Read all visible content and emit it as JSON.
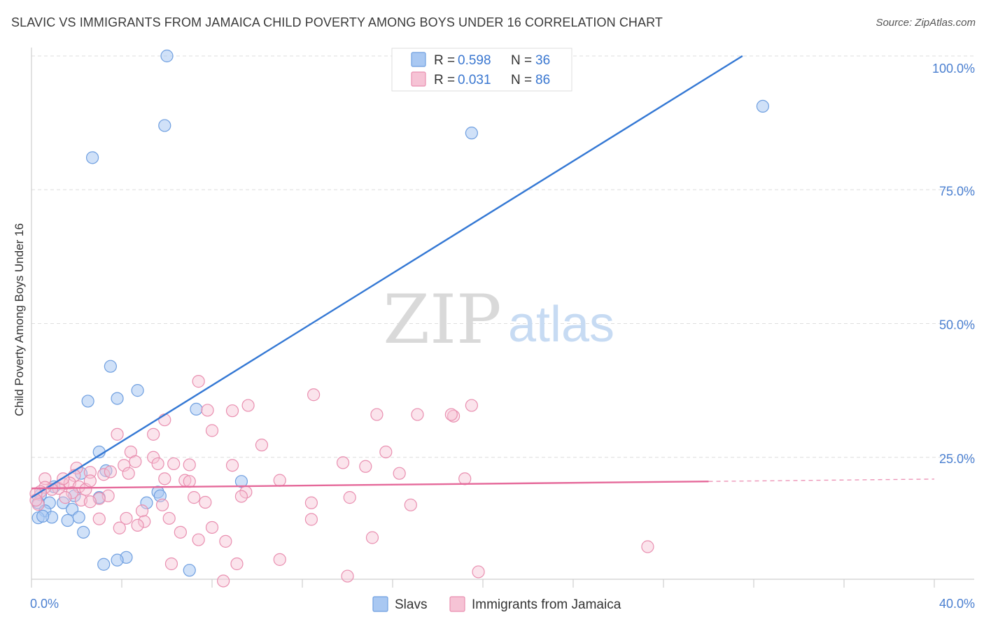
{
  "title": "SLAVIC VS IMMIGRANTS FROM JAMAICA CHILD POVERTY AMONG BOYS UNDER 16 CORRELATION CHART",
  "source": "Source: ZipAtlas.com",
  "watermark": {
    "zip": "ZIP",
    "atlas": "atlas"
  },
  "chart_data": {
    "type": "scatter",
    "xlabel": "",
    "ylabel": "Child Poverty Among Boys Under 16",
    "xlim": [
      0,
      40
    ],
    "ylim": [
      0,
      100
    ],
    "x_tick_labels": [
      "0.0%",
      "40.0%"
    ],
    "y_tick_labels": [
      "25.0%",
      "50.0%",
      "75.0%",
      "100.0%"
    ],
    "y_ticks": [
      25,
      50,
      75,
      100
    ],
    "grid": true,
    "legend_position": "top-center",
    "series": [
      {
        "name": "Slavs",
        "color": "#6f9fe0",
        "fill": "#a9c8f2",
        "line_color": "#3478d4",
        "R": "0.598",
        "N": "36",
        "trend": {
          "x0": 0,
          "y0": 17.5,
          "x1": 31.5,
          "y1": 100,
          "dashed_to": null
        },
        "points": [
          [
            6.0,
            100.0
          ],
          [
            5.9,
            87.0
          ],
          [
            2.7,
            81.0
          ],
          [
            32.4,
            90.6
          ],
          [
            19.5,
            85.6
          ],
          [
            3.5,
            42.0
          ],
          [
            4.7,
            37.5
          ],
          [
            3.8,
            36.0
          ],
          [
            2.5,
            35.5
          ],
          [
            7.3,
            34.0
          ],
          [
            3.0,
            26.0
          ],
          [
            3.3,
            22.5
          ],
          [
            2.2,
            22.0
          ],
          [
            9.3,
            20.5
          ],
          [
            1.0,
            19.5
          ],
          [
            0.4,
            18.0
          ],
          [
            1.9,
            17.8
          ],
          [
            5.6,
            18.5
          ],
          [
            5.7,
            17.8
          ],
          [
            3.0,
            17.5
          ],
          [
            0.8,
            16.5
          ],
          [
            1.4,
            16.5
          ],
          [
            5.1,
            16.5
          ],
          [
            0.3,
            16.5
          ],
          [
            1.8,
            15.3
          ],
          [
            0.6,
            15.0
          ],
          [
            0.9,
            13.8
          ],
          [
            0.3,
            13.7
          ],
          [
            2.1,
            13.8
          ],
          [
            1.6,
            13.2
          ],
          [
            0.5,
            14.0
          ],
          [
            2.3,
            11.0
          ],
          [
            4.2,
            6.3
          ],
          [
            3.8,
            5.8
          ],
          [
            3.2,
            5.0
          ],
          [
            7.0,
            3.9
          ]
        ]
      },
      {
        "name": "Immigrants from Jamaica",
        "color": "#e98fb0",
        "fill": "#f6c3d5",
        "line_color": "#e5699a",
        "R": "0.031",
        "N": "86",
        "trend": {
          "x0": 0,
          "y0": 19.2,
          "x1": 30.0,
          "y1": 20.5,
          "dashed_to": 40.0
        },
        "points": [
          [
            7.4,
            39.2
          ],
          [
            12.5,
            36.7
          ],
          [
            9.6,
            34.7
          ],
          [
            19.5,
            34.7
          ],
          [
            7.8,
            33.8
          ],
          [
            8.9,
            33.7
          ],
          [
            15.3,
            33.0
          ],
          [
            17.1,
            33.0
          ],
          [
            18.7,
            32.7
          ],
          [
            5.9,
            32.0
          ],
          [
            3.8,
            29.3
          ],
          [
            5.4,
            29.3
          ],
          [
            10.2,
            27.3
          ],
          [
            15.7,
            26.0
          ],
          [
            4.4,
            26.0
          ],
          [
            5.4,
            25.0
          ],
          [
            4.6,
            24.2
          ],
          [
            4.1,
            23.5
          ],
          [
            5.6,
            23.8
          ],
          [
            6.3,
            23.8
          ],
          [
            7.0,
            23.6
          ],
          [
            8.9,
            23.5
          ],
          [
            13.8,
            24.0
          ],
          [
            14.8,
            23.3
          ],
          [
            4.3,
            22.0
          ],
          [
            2.0,
            23.0
          ],
          [
            16.3,
            22.0
          ],
          [
            3.2,
            21.8
          ],
          [
            3.5,
            22.3
          ],
          [
            2.6,
            22.2
          ],
          [
            1.9,
            21.6
          ],
          [
            5.9,
            21.0
          ],
          [
            6.8,
            20.7
          ],
          [
            7.0,
            20.5
          ],
          [
            11.0,
            20.7
          ],
          [
            19.2,
            21.0
          ],
          [
            0.6,
            21.0
          ],
          [
            1.4,
            20.0
          ],
          [
            1.7,
            20.2
          ],
          [
            1.2,
            19.2
          ],
          [
            0.9,
            19.0
          ],
          [
            0.6,
            19.4
          ],
          [
            0.4,
            18.6
          ],
          [
            0.2,
            18.2
          ],
          [
            2.1,
            19.5
          ],
          [
            2.4,
            19.0
          ],
          [
            1.8,
            18.4
          ],
          [
            9.5,
            18.5
          ],
          [
            9.3,
            17.7
          ],
          [
            3.4,
            17.8
          ],
          [
            3.0,
            17.3
          ],
          [
            2.2,
            17.0
          ],
          [
            7.2,
            17.5
          ],
          [
            2.6,
            16.7
          ],
          [
            7.7,
            16.6
          ],
          [
            14.1,
            17.5
          ],
          [
            12.4,
            16.5
          ],
          [
            16.8,
            16.1
          ],
          [
            5.8,
            16.1
          ],
          [
            4.9,
            15.0
          ],
          [
            0.3,
            16.2
          ],
          [
            1.5,
            17.5
          ],
          [
            0.2,
            17.0
          ],
          [
            3.0,
            13.5
          ],
          [
            4.2,
            13.6
          ],
          [
            6.1,
            13.6
          ],
          [
            5.0,
            13.0
          ],
          [
            12.4,
            13.4
          ],
          [
            4.7,
            12.3
          ],
          [
            3.9,
            11.8
          ],
          [
            8.0,
            11.9
          ],
          [
            6.6,
            11.0
          ],
          [
            7.4,
            9.6
          ],
          [
            8.6,
            9.3
          ],
          [
            15.1,
            10.0
          ],
          [
            27.3,
            8.3
          ],
          [
            11.0,
            5.9
          ],
          [
            9.1,
            5.1
          ],
          [
            6.2,
            5.1
          ],
          [
            19.8,
            3.6
          ],
          [
            14.0,
            2.8
          ],
          [
            8.5,
            1.9
          ],
          [
            18.6,
            33.0
          ],
          [
            8.0,
            30.0
          ],
          [
            1.4,
            21.0
          ],
          [
            2.6,
            20.6
          ]
        ]
      }
    ]
  }
}
